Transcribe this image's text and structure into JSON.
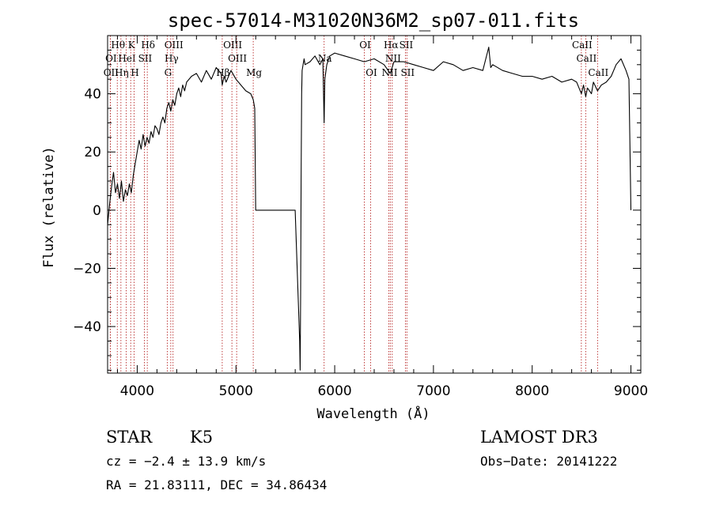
{
  "chart_data": {
    "type": "line",
    "title": "spec-57014-M31020N36M2_sp07-011.fits",
    "xlabel": "Wavelength (Å)",
    "ylabel": "Flux (relative)",
    "xlim": [
      3700,
      9100
    ],
    "ylim": [
      -56,
      60
    ],
    "xticks": [
      4000,
      5000,
      6000,
      7000,
      8000,
      9000
    ],
    "yticks": [
      -40,
      -20,
      0,
      20,
      40
    ],
    "grid": false,
    "series": [
      {
        "color": "#000000",
        "x": [
          3700,
          3720,
          3740,
          3760,
          3780,
          3800,
          3820,
          3840,
          3860,
          3880,
          3900,
          3920,
          3940,
          3960,
          3980,
          4000,
          4020,
          4040,
          4060,
          4080,
          4100,
          4120,
          4140,
          4160,
          4180,
          4200,
          4220,
          4240,
          4260,
          4280,
          4300,
          4320,
          4340,
          4360,
          4380,
          4400,
          4420,
          4440,
          4460,
          4480,
          4500,
          4550,
          4600,
          4650,
          4700,
          4750,
          4800,
          4850,
          4861,
          4880,
          4900,
          4950,
          5000,
          5050,
          5100,
          5150,
          5175,
          5190,
          5200,
          5300,
          5400,
          5500,
          5600,
          5645,
          5650,
          5655,
          5660,
          5665,
          5670,
          5680,
          5690,
          5700,
          5750,
          5800,
          5850,
          5880,
          5893,
          5900,
          5920,
          5950,
          6000,
          6100,
          6200,
          6300,
          6400,
          6500,
          6563,
          6600,
          6700,
          6800,
          6900,
          7000,
          7100,
          7200,
          7300,
          7400,
          7500,
          7560,
          7580,
          7600,
          7700,
          7800,
          7900,
          8000,
          8100,
          8200,
          8300,
          8400,
          8450,
          8498,
          8520,
          8542,
          8560,
          8600,
          8620,
          8662,
          8700,
          8750,
          8800,
          8850,
          8900,
          8950,
          8980,
          9000
        ],
        "y": [
          -5,
          2,
          8,
          13,
          6,
          9,
          4,
          10,
          3,
          7,
          5,
          9,
          6,
          12,
          16,
          20,
          24,
          21,
          26,
          22,
          25,
          23,
          27,
          25,
          29,
          28,
          26,
          30,
          32,
          30,
          35,
          37,
          34,
          38,
          36,
          40,
          42,
          39,
          43,
          41,
          44,
          46,
          47,
          44,
          48,
          45,
          49,
          47,
          43,
          46,
          44,
          48,
          45,
          43,
          41,
          40,
          38,
          35,
          0,
          0,
          0,
          0,
          0,
          -45,
          -55,
          -30,
          10,
          40,
          48,
          50,
          52,
          50,
          51,
          53,
          50,
          52,
          30,
          45,
          50,
          53,
          54,
          53,
          52,
          51,
          52,
          50,
          47,
          51,
          51,
          50,
          49,
          48,
          51,
          50,
          48,
          49,
          48,
          56,
          49,
          50,
          48,
          47,
          46,
          46,
          45,
          46,
          44,
          45,
          44,
          40,
          43,
          39,
          42,
          40,
          44,
          41,
          43,
          44,
          46,
          50,
          52,
          48,
          45,
          0
        ]
      }
    ],
    "spectral_lines": [
      {
        "label": "Hθ",
        "x": 3798,
        "row": 0
      },
      {
        "label": "K",
        "x": 3934,
        "row": 0
      },
      {
        "label": "Hδ",
        "x": 4102,
        "row": 0
      },
      {
        "label": "OIII",
        "x": 4363,
        "row": 0
      },
      {
        "label": "OIII",
        "x": 4959,
        "row": 0
      },
      {
        "label": "OI",
        "x": 6300,
        "row": 0
      },
      {
        "label": "Hα",
        "x": 6563,
        "row": 0
      },
      {
        "label": "SII",
        "x": 6716,
        "row": 0
      },
      {
        "label": "CaII",
        "x": 8498,
        "row": 0
      },
      {
        "label": "OI",
        "x": 3727,
        "row": 1
      },
      {
        "label": "HeI",
        "x": 3889,
        "row": 1
      },
      {
        "label": "SII",
        "x": 4072,
        "row": 1
      },
      {
        "label": "Hγ",
        "x": 4340,
        "row": 1
      },
      {
        "label": "OIII",
        "x": 5007,
        "row": 1
      },
      {
        "label": "Na",
        "x": 5893,
        "row": 1
      },
      {
        "label": "NII",
        "x": 6583,
        "row": 1
      },
      {
        "label": "CaII",
        "x": 8542,
        "row": 1
      },
      {
        "label": "OII",
        "x": 3727,
        "row": 2
      },
      {
        "label": "Hη",
        "x": 3835,
        "row": 2
      },
      {
        "label": "H",
        "x": 3968,
        "row": 2
      },
      {
        "label": "G",
        "x": 4304,
        "row": 2
      },
      {
        "label": "Hβ",
        "x": 4861,
        "row": 2
      },
      {
        "label": "Mg",
        "x": 5175,
        "row": 2
      },
      {
        "label": "OI",
        "x": 6364,
        "row": 2
      },
      {
        "label": "NII",
        "x": 6548,
        "row": 2
      },
      {
        "label": "SII",
        "x": 6731,
        "row": 2
      },
      {
        "label": "CaII",
        "x": 8662,
        "row": 2
      }
    ]
  },
  "info": {
    "class": "STAR",
    "subclass": "K5",
    "survey": "LAMOST DR3",
    "cz": "cz = −2.4 ± 13.9 km/s",
    "obs_date": "Obs−Date: 20141222",
    "coords": "RA =  21.83111, DEC =  34.86434"
  }
}
